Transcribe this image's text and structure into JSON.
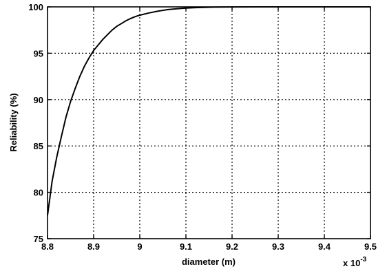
{
  "chart_data": {
    "type": "line",
    "xlabel": "diameter (m)",
    "ylabel": "Reliability (%)",
    "x_multiplier_label": "x 10",
    "x_multiplier_exponent": "-3",
    "xlim": [
      8.8,
      9.5
    ],
    "ylim": [
      75,
      100
    ],
    "xticks": [
      "8.8",
      "8.9",
      "9",
      "9.1",
      "9.2",
      "9.3",
      "9.4",
      "9.5"
    ],
    "yticks": [
      "75",
      "80",
      "85",
      "90",
      "95",
      "100"
    ],
    "grid": true,
    "series": [
      {
        "x": [
          8.8,
          8.81,
          8.82,
          8.83,
          8.84,
          8.85,
          8.86,
          8.87,
          8.88,
          8.89,
          8.9,
          8.91,
          8.92,
          8.93,
          8.94,
          8.95,
          8.96,
          8.97,
          8.98,
          8.99,
          9.0,
          9.02,
          9.04,
          9.06,
          9.08,
          9.1,
          9.12,
          9.14,
          9.16,
          9.18,
          9.2,
          9.25,
          9.3,
          9.35,
          9.4,
          9.45,
          9.5
        ],
        "y": [
          77.5,
          81.2,
          83.8,
          86.0,
          88.1,
          89.8,
          91.2,
          92.5,
          93.6,
          94.5,
          95.3,
          95.9,
          96.5,
          97.0,
          97.5,
          97.9,
          98.2,
          98.5,
          98.75,
          98.95,
          99.1,
          99.35,
          99.55,
          99.7,
          99.8,
          99.87,
          99.92,
          99.95,
          99.97,
          99.98,
          99.99,
          100,
          100,
          100,
          100,
          100,
          100
        ]
      }
    ]
  }
}
